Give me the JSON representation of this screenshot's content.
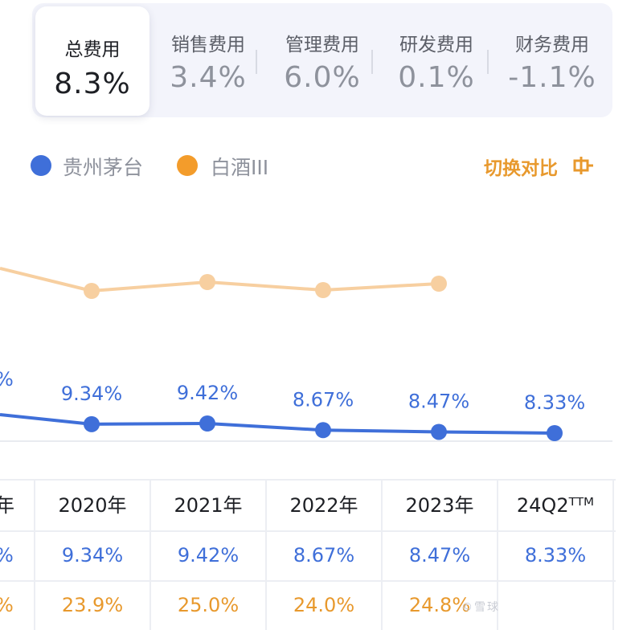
{
  "tabs": [
    {
      "label": "总费用",
      "value": "8.3%",
      "active": true
    },
    {
      "label": "销售费用",
      "value": "3.4%",
      "active": false
    },
    {
      "label": "管理费用",
      "value": "6.0%",
      "active": false
    },
    {
      "label": "研发费用",
      "value": "0.1%",
      "active": false
    },
    {
      "label": "财务费用",
      "value": "-1.1%",
      "active": false
    }
  ],
  "legend": {
    "moutai": {
      "label": "贵州茅台",
      "color": "#3f6fd9"
    },
    "baijiu": {
      "label": "白酒III",
      "color": "#f39c2b"
    }
  },
  "switch_label": "切换对比",
  "chart_data": {
    "type": "line",
    "x": [
      "2020年",
      "2021年",
      "2022年",
      "2023年",
      "24Q2TTM"
    ],
    "series": [
      {
        "name": "贵州茅台",
        "values": [
          9.34,
          9.42,
          8.67,
          8.47,
          8.33
        ],
        "labels": [
          "9.34%",
          "9.42%",
          "8.67%",
          "8.47%",
          "8.33%"
        ],
        "color": "#3f6fd9"
      },
      {
        "name": "白酒III",
        "values": [
          23.9,
          25.0,
          24.0,
          24.8,
          null
        ],
        "color": "#f7cfa0"
      }
    ]
  },
  "table": {
    "first_col_partial": {
      "year": "年",
      "moutai": "%",
      "baijiu": "%"
    },
    "years": [
      "2020年",
      "2021年",
      "2022年",
      "2023年",
      "24Q2ᵀᵀᴹ"
    ],
    "moutai": [
      "9.34%",
      "9.42%",
      "8.67%",
      "8.47%",
      "8.33%"
    ],
    "baijiu": [
      "23.9%",
      "25.0%",
      "24.0%",
      "24.8%",
      ""
    ]
  },
  "partial_prev_label": "%",
  "watermark": "©雪球"
}
